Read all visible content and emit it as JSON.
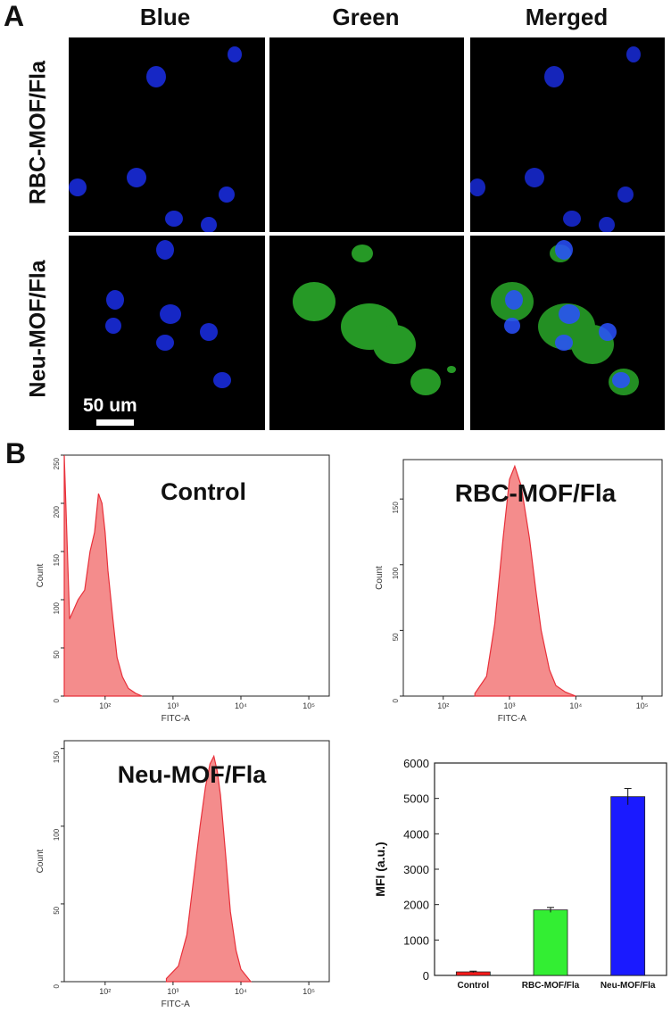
{
  "panel_a": {
    "letter": "A",
    "columns": [
      "Blue",
      "Green",
      "Merged"
    ],
    "rows": [
      "RBC-MOF/Fla",
      "Neu-MOF/Fla"
    ],
    "scale_bar": "50 um"
  },
  "panel_b": {
    "letter": "B",
    "histograms": [
      {
        "label": "Control",
        "y_ticks": [
          "0",
          "50",
          "100",
          "150",
          "200",
          "250"
        ],
        "x_ticks": [
          "10²",
          "10³",
          "10⁴",
          "10⁵"
        ],
        "xlabel": "FITC-A",
        "ylabel": "Count"
      },
      {
        "label": "RBC-MOF/Fla",
        "y_ticks": [
          "0",
          "50",
          "100",
          "150"
        ],
        "x_ticks": [
          "10²",
          "10³",
          "10⁴",
          "10⁵"
        ],
        "xlabel": "FITC-A",
        "ylabel": "Count"
      },
      {
        "label": "Neu-MOF/Fla",
        "y_ticks": [
          "0",
          "50",
          "100",
          "150"
        ],
        "x_ticks": [
          "10²",
          "10³",
          "10⁴",
          "10⁵"
        ],
        "xlabel": "FITC-A",
        "ylabel": "Count"
      }
    ]
  },
  "chart_data": [
    {
      "type": "area",
      "title": "Control",
      "xlabel": "FITC-A",
      "ylabel": "Count",
      "x_scale": "log",
      "xlim": [
        25,
        200000
      ],
      "ylim": [
        0,
        250
      ],
      "color": "#e8303a",
      "fill": "#f48c8c",
      "x": [
        25,
        30,
        40,
        50,
        60,
        70,
        80,
        90,
        100,
        110,
        130,
        150,
        180,
        220,
        280,
        350
      ],
      "y": [
        250,
        80,
        100,
        110,
        150,
        170,
        210,
        200,
        170,
        130,
        80,
        40,
        20,
        8,
        3,
        0
      ]
    },
    {
      "type": "area",
      "title": "RBC-MOF/Fla",
      "xlabel": "FITC-A",
      "ylabel": "Count",
      "x_scale": "log",
      "xlim": [
        25,
        200000
      ],
      "ylim": [
        0,
        180
      ],
      "color": "#e8303a",
      "fill": "#f48c8c",
      "x": [
        300,
        450,
        600,
        800,
        1000,
        1200,
        1500,
        2000,
        2500,
        3000,
        4000,
        5000,
        7000,
        10000
      ],
      "y": [
        2,
        15,
        55,
        120,
        165,
        175,
        160,
        120,
        80,
        50,
        20,
        8,
        3,
        0
      ]
    },
    {
      "type": "area",
      "title": "Neu-MOF/Fla",
      "xlabel": "FITC-A",
      "ylabel": "Count",
      "x_scale": "log",
      "xlim": [
        25,
        200000
      ],
      "ylim": [
        0,
        155
      ],
      "color": "#e8303a",
      "fill": "#f48c8c",
      "x": [
        800,
        1200,
        1600,
        2000,
        2500,
        3000,
        3500,
        4000,
        4500,
        5000,
        6000,
        7000,
        8500,
        10000,
        14000
      ],
      "y": [
        2,
        10,
        30,
        65,
        100,
        125,
        140,
        145,
        135,
        120,
        80,
        45,
        20,
        8,
        0
      ]
    },
    {
      "type": "bar",
      "categories": [
        "Control",
        "RBC-MOF/Fla",
        "Neu-MOF/Fla"
      ],
      "values": [
        100,
        1850,
        5050
      ],
      "errors": [
        20,
        70,
        230
      ],
      "colors": [
        "#ff1a1a",
        "#33ee33",
        "#1a1aff"
      ],
      "ylabel": "MFI (a.u.)",
      "ylim": [
        0,
        6000
      ],
      "y_ticks": [
        0,
        1000,
        2000,
        3000,
        4000,
        5000,
        6000
      ]
    }
  ]
}
